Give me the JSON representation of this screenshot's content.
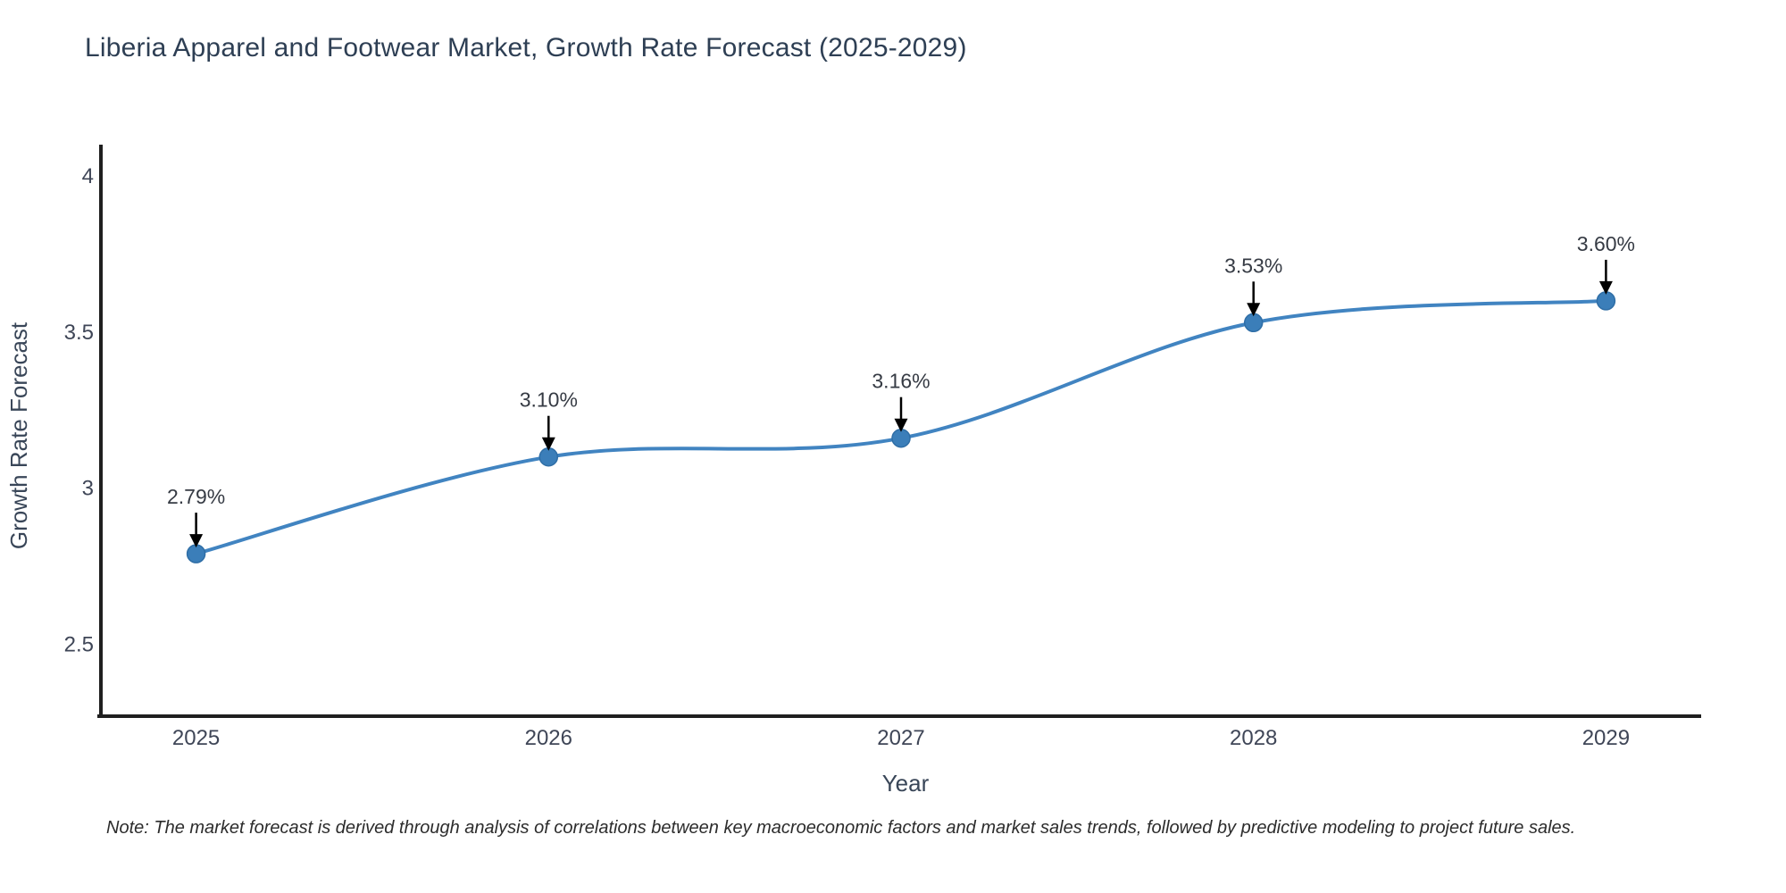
{
  "page": {
    "title": "Liberia Apparel and Footwear Market, Growth Rate Forecast (2025-2029)",
    "note": "Note: The market forecast is derived through analysis of correlations between key macroeconomic factors and market sales trends, followed by predictive modeling to project future sales."
  },
  "chart_data": {
    "type": "line",
    "title": "Liberia Apparel and Footwear Market, Growth Rate Forecast (2025-2029)",
    "xlabel": "Year",
    "ylabel": "Growth Rate Forecast",
    "categories": [
      "2025",
      "2026",
      "2027",
      "2028",
      "2029"
    ],
    "x": [
      2025,
      2026,
      2027,
      2028,
      2029
    ],
    "series": [
      {
        "name": "Growth Rate Forecast",
        "values": [
          2.79,
          3.1,
          3.16,
          3.53,
          3.6
        ]
      }
    ],
    "point_labels": [
      "2.79%",
      "3.10%",
      "3.16%",
      "3.53%",
      "3.60%"
    ],
    "y_ticks": [
      2.5,
      3,
      3.5,
      4
    ],
    "ylim": [
      2.27,
      4.1
    ],
    "xlim": [
      2024.73,
      2029.27
    ],
    "grid": false,
    "legend": "none",
    "line_shape": "spline",
    "annotation_style": "down-arrow",
    "colors": {
      "line": "#4184c1",
      "marker": "#3b7eb9",
      "marker_edge": "#2f6ea6",
      "axis": "#1f1f1f",
      "tick_text": "#3f4657",
      "axis_title_text": "#394658",
      "annotation_text": "#363b44",
      "arrow": "#000000",
      "title_text": "#2e3f54",
      "note_text": "#2c2c2c",
      "background": "#ffffff"
    }
  }
}
